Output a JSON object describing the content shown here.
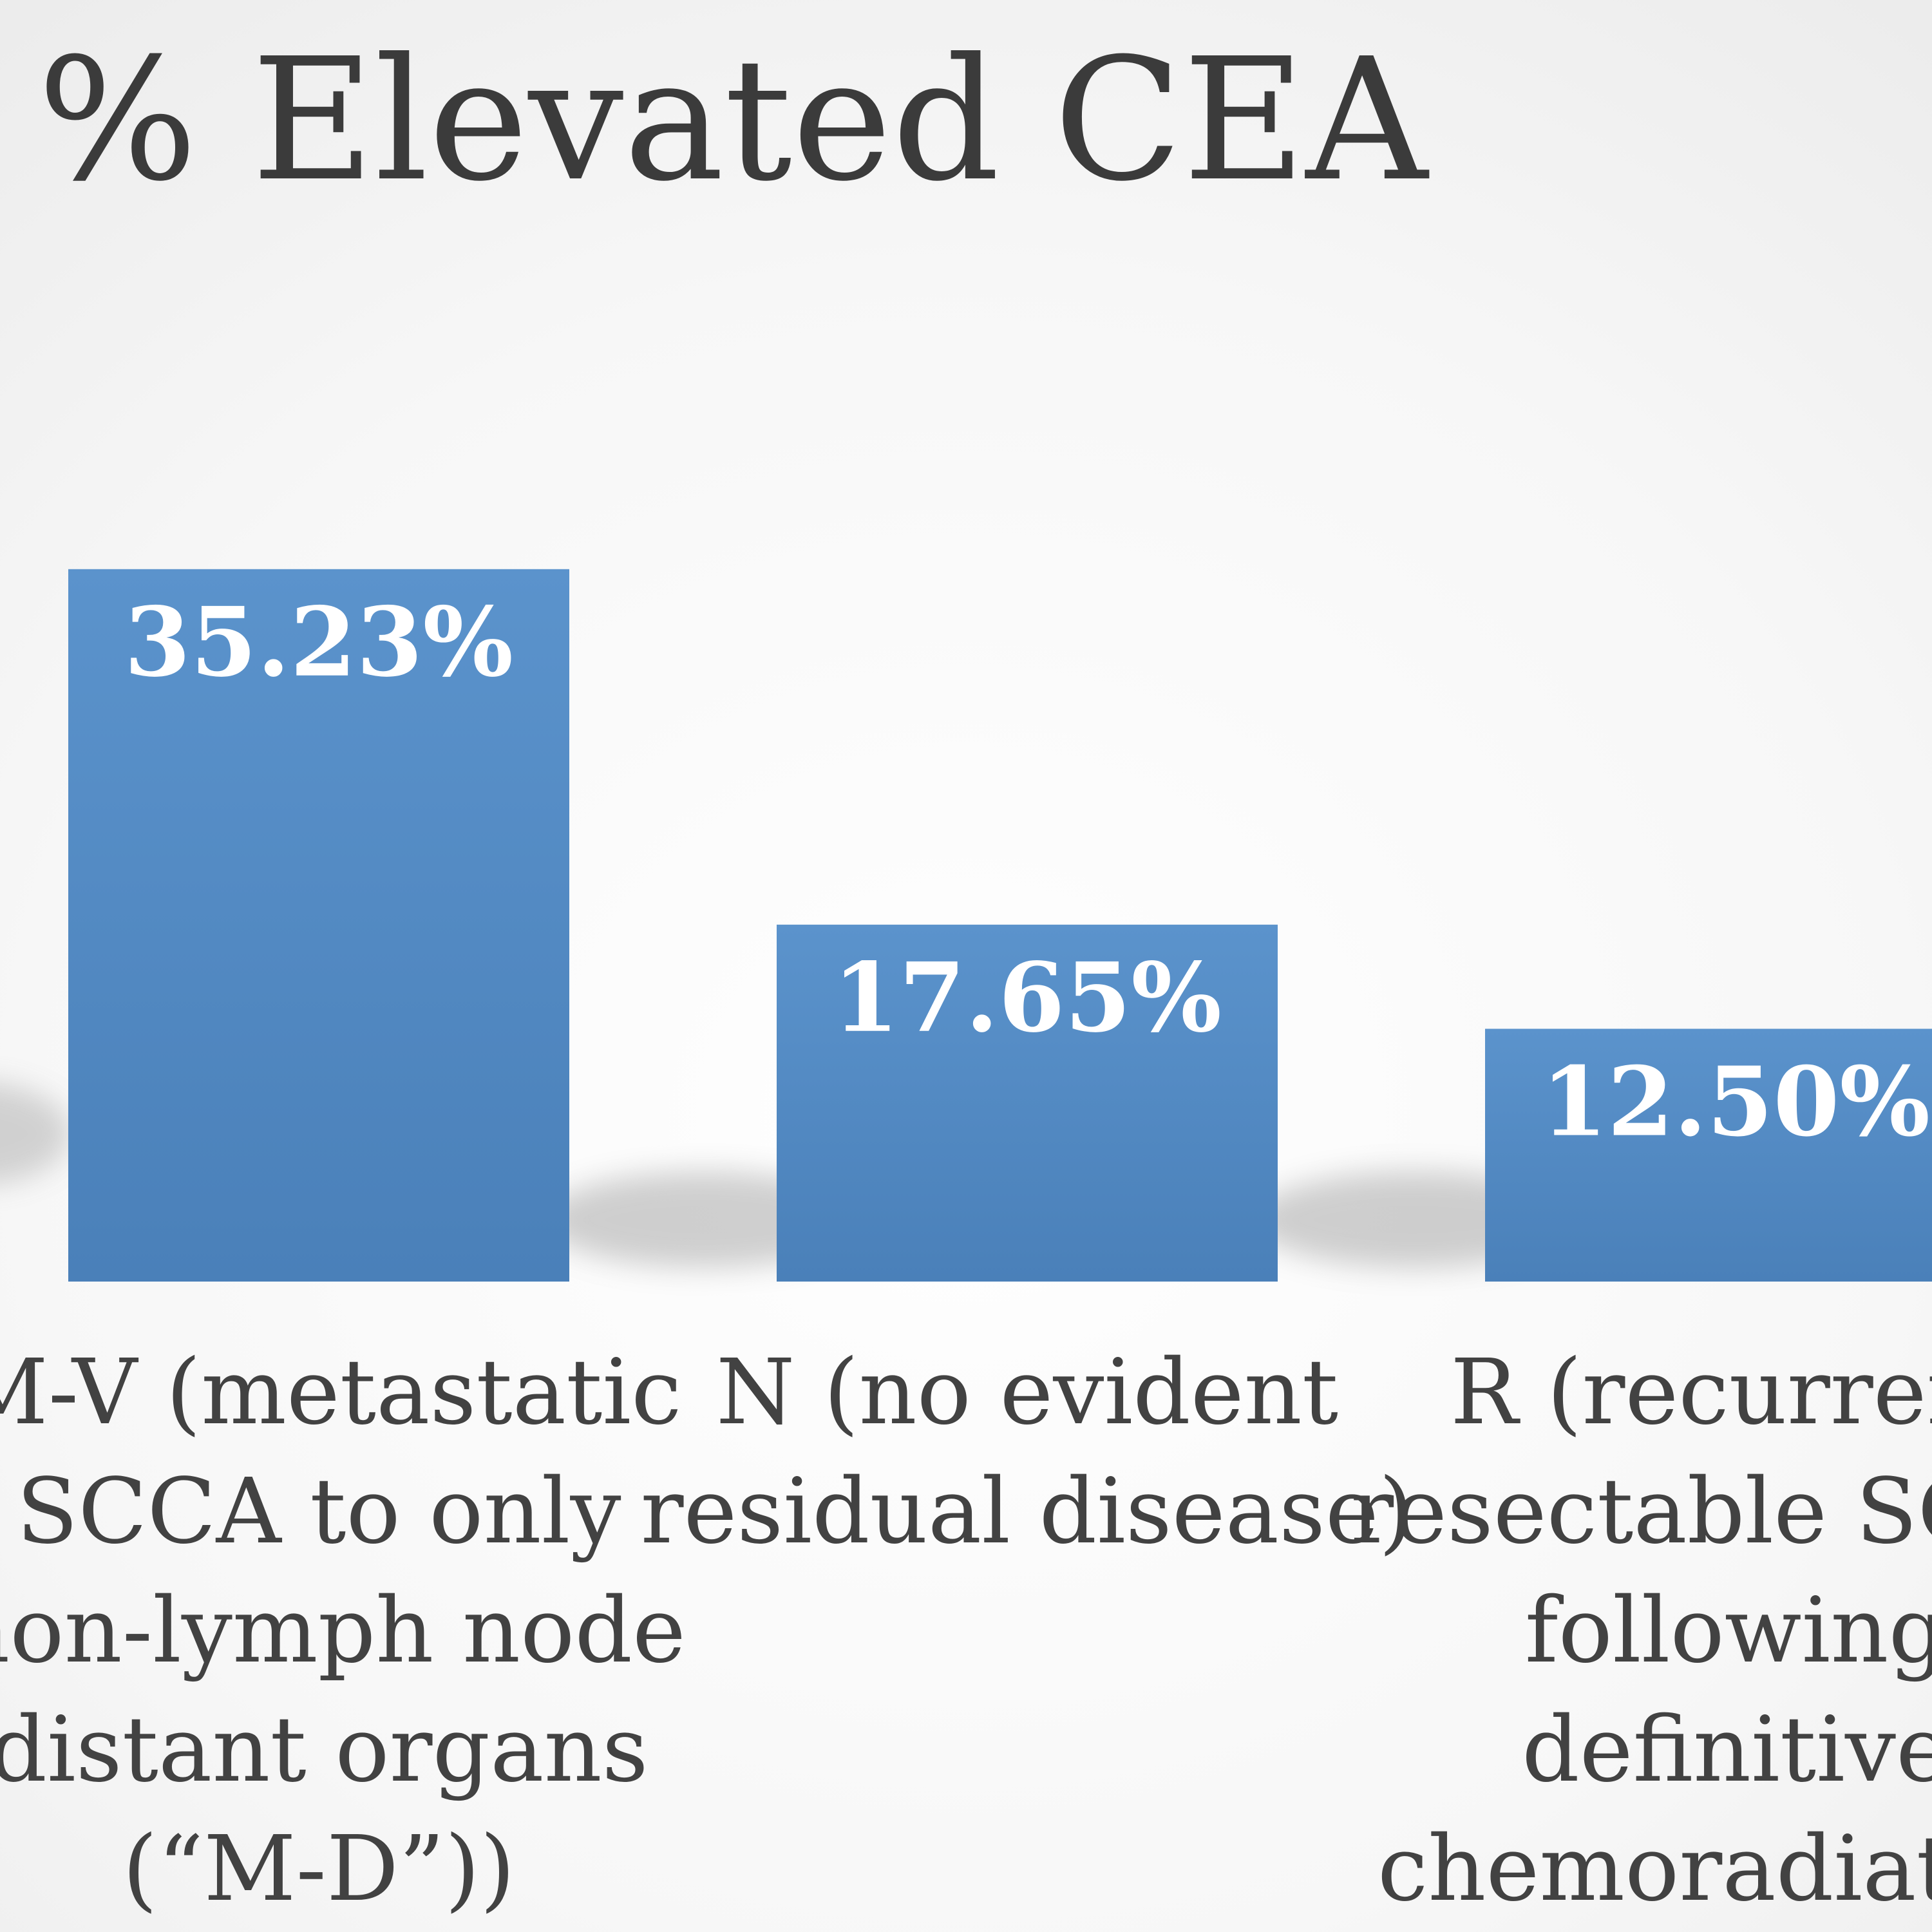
{
  "chart_data": {
    "type": "bar",
    "title": "% Elevated CEA",
    "xlabel": "",
    "ylabel": "",
    "ylim": [
      0,
      60
    ],
    "grid": false,
    "legend": "none",
    "bar_color": "#4f86bf",
    "categories": [
      "M-V (metastatic SCCA to only non-lymph node distant organs (“M-D”))",
      "N (no evident residual disease)",
      "R (recurrent resectable SCCA following definitive chemoradiation)"
    ],
    "category_label_lines": [
      [
        "M-V (metastatic",
        "SCCA to only",
        "non-lymph node",
        "distant organs",
        "(“M-D”))"
      ],
      [
        "N (no evident",
        "residual disease)"
      ],
      [
        "R (recurrent",
        "resectable SCCA",
        "following",
        "definitive",
        "chemoradiation"
      ]
    ],
    "values": [
      35.23,
      17.65,
      12.5
    ],
    "data_labels": [
      "35.23%",
      "17.65%",
      "12.50%"
    ]
  }
}
